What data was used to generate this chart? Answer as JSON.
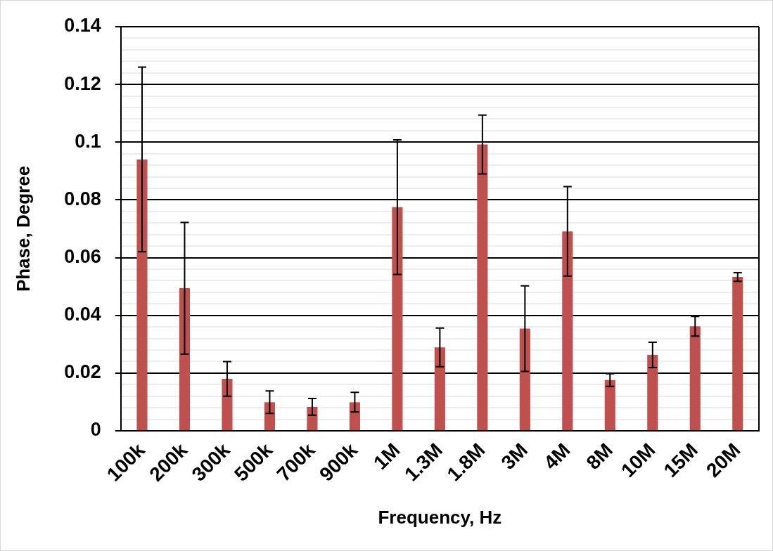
{
  "chart_data": {
    "type": "bar",
    "categories": [
      "100k",
      "200k",
      "300k",
      "500k",
      "700k",
      "900k",
      "1M",
      "1.3M",
      "1.8M",
      "3M",
      "4M",
      "8M",
      "10M",
      "15M",
      "20M"
    ],
    "values": [
      0.094,
      0.0494,
      0.018,
      0.0099,
      0.0083,
      0.0099,
      0.0775,
      0.0289,
      0.0992,
      0.0354,
      0.0691,
      0.0176,
      0.0263,
      0.0362,
      0.0533
    ],
    "errors": [
      0.032,
      0.0228,
      0.006,
      0.0039,
      0.0029,
      0.0034,
      0.0233,
      0.0067,
      0.0102,
      0.0148,
      0.0155,
      0.0022,
      0.0044,
      0.0034,
      0.0015
    ],
    "color": "#c0504d",
    "xlabel": "Frequency, Hz",
    "ylabel": "Phase, Degree",
    "ylim": [
      0,
      0.14
    ],
    "yticks": [
      0,
      {
        "value": 0.004,
        "label": null
      },
      {
        "value": 0.008,
        "label": null
      },
      {
        "value": 0.012,
        "label": null
      },
      {
        "value": 0.016,
        "label": null
      },
      0.02,
      {
        "value": 0.024,
        "label": null
      },
      {
        "value": 0.028,
        "label": null
      },
      {
        "value": 0.032,
        "label": null
      },
      {
        "value": 0.036,
        "label": null
      },
      0.04,
      {
        "value": 0.044,
        "label": null
      },
      {
        "value": 0.048,
        "label": null
      },
      {
        "value": 0.052,
        "label": null
      },
      {
        "value": 0.056,
        "label": null
      },
      0.06,
      {
        "value": 0.064,
        "label": null
      },
      {
        "value": 0.068,
        "label": null
      },
      {
        "value": 0.072,
        "label": null
      },
      {
        "value": 0.076,
        "label": null
      },
      0.08,
      {
        "value": 0.084,
        "label": null
      },
      {
        "value": 0.088,
        "label": null
      },
      {
        "value": 0.092,
        "label": null
      },
      {
        "value": 0.096,
        "label": null
      },
      0.1,
      {
        "value": 0.104,
        "label": null
      },
      {
        "value": 0.108,
        "label": null
      },
      {
        "value": 0.112,
        "label": null
      },
      {
        "value": 0.116,
        "label": null
      },
      0.12,
      {
        "value": 0.124,
        "label": null
      },
      {
        "value": 0.128,
        "label": null
      },
      {
        "value": 0.132,
        "label": null
      },
      {
        "value": 0.136,
        "label": null
      },
      0.14
    ],
    "grid": "y"
  }
}
